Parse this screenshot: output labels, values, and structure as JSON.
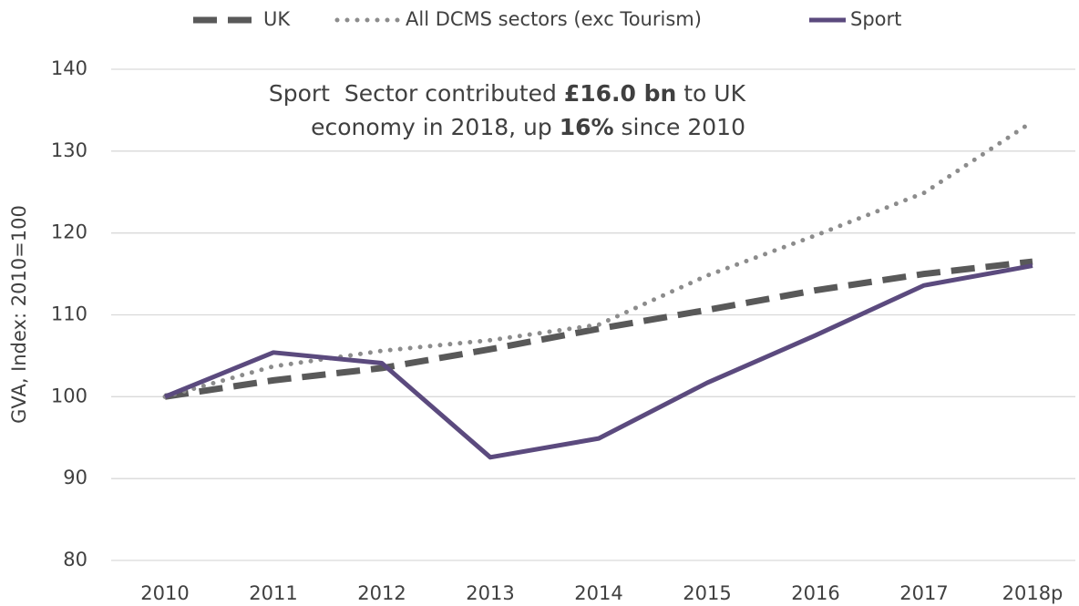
{
  "chart_data": {
    "type": "line",
    "y_label": "GVA, Index: 2010=100",
    "annotation": [
      [
        {
          "text": "Sport  Sector contributed "
        },
        {
          "text": "£16.0 bn",
          "bold": true
        },
        {
          "text": " to UK"
        }
      ],
      [
        {
          "text": "economy in 2018, up "
        },
        {
          "text": "16%",
          "bold": true
        },
        {
          "text": " since 2010"
        }
      ]
    ],
    "categories": [
      "2010",
      "2011",
      "2012",
      "2013",
      "2014",
      "2015",
      "2016",
      "2017",
      "2018p"
    ],
    "series": [
      {
        "name": "UK",
        "color": "#595959",
        "style": "dashed",
        "values": [
          100,
          102,
          103.5,
          105.8,
          108.3,
          110.6,
          113,
          115,
          116.5
        ]
      },
      {
        "name": "All DCMS sectors (exc Tourism)",
        "color": "#8c8c8c",
        "style": "dotted",
        "values": [
          100,
          103.7,
          105.6,
          106.9,
          108.8,
          114.8,
          119.7,
          124.9,
          133.6
        ]
      },
      {
        "name": "Sport",
        "color": "#5b4a7e",
        "style": "solid",
        "values": [
          100,
          105.4,
          104.1,
          92.6,
          94.9,
          101.7,
          107.5,
          113.6,
          116
        ]
      }
    ],
    "ylim": [
      80,
      140
    ],
    "yticks": [
      80,
      90,
      100,
      110,
      120,
      130,
      140
    ],
    "grid": true,
    "legend": "top"
  }
}
